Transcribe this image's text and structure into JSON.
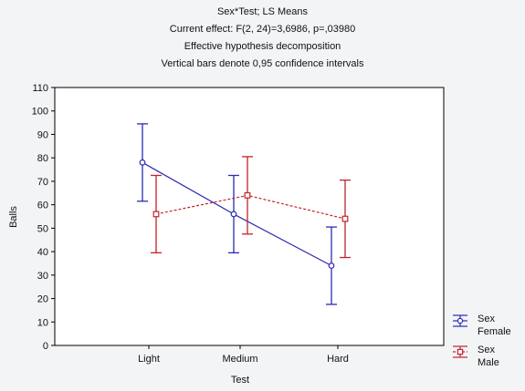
{
  "chart_data": {
    "type": "line",
    "title_lines": [
      "Sex*Test; LS Means",
      "Current effect: F(2, 24)=3,6986, p=,03980",
      "Effective hypothesis decomposition",
      "Vertical bars denote 0,95 confidence intervals"
    ],
    "xlabel": "Test",
    "ylabel": "Balls",
    "categories": [
      "Light",
      "Medium",
      "Hard"
    ],
    "ylim": [
      0,
      110
    ],
    "yticks": [
      0,
      10,
      20,
      30,
      40,
      50,
      60,
      70,
      80,
      90,
      100,
      110
    ],
    "grid": false,
    "legend_title": "Sex",
    "legend_position": "bottom-right",
    "series": [
      {
        "name": "Female",
        "color": "#2b2bb5",
        "marker": "circle",
        "line_style": "solid",
        "values": [
          78,
          56,
          34
        ],
        "lower": [
          61.5,
          39.5,
          17.5
        ],
        "upper": [
          94.5,
          72.5,
          50.5
        ]
      },
      {
        "name": "Male",
        "color": "#c0242a",
        "marker": "square",
        "line_style": "dashed",
        "values": [
          56,
          64,
          54
        ],
        "lower": [
          39.5,
          47.5,
          37.5
        ],
        "upper": [
          72.5,
          80.5,
          70.5
        ]
      }
    ]
  }
}
